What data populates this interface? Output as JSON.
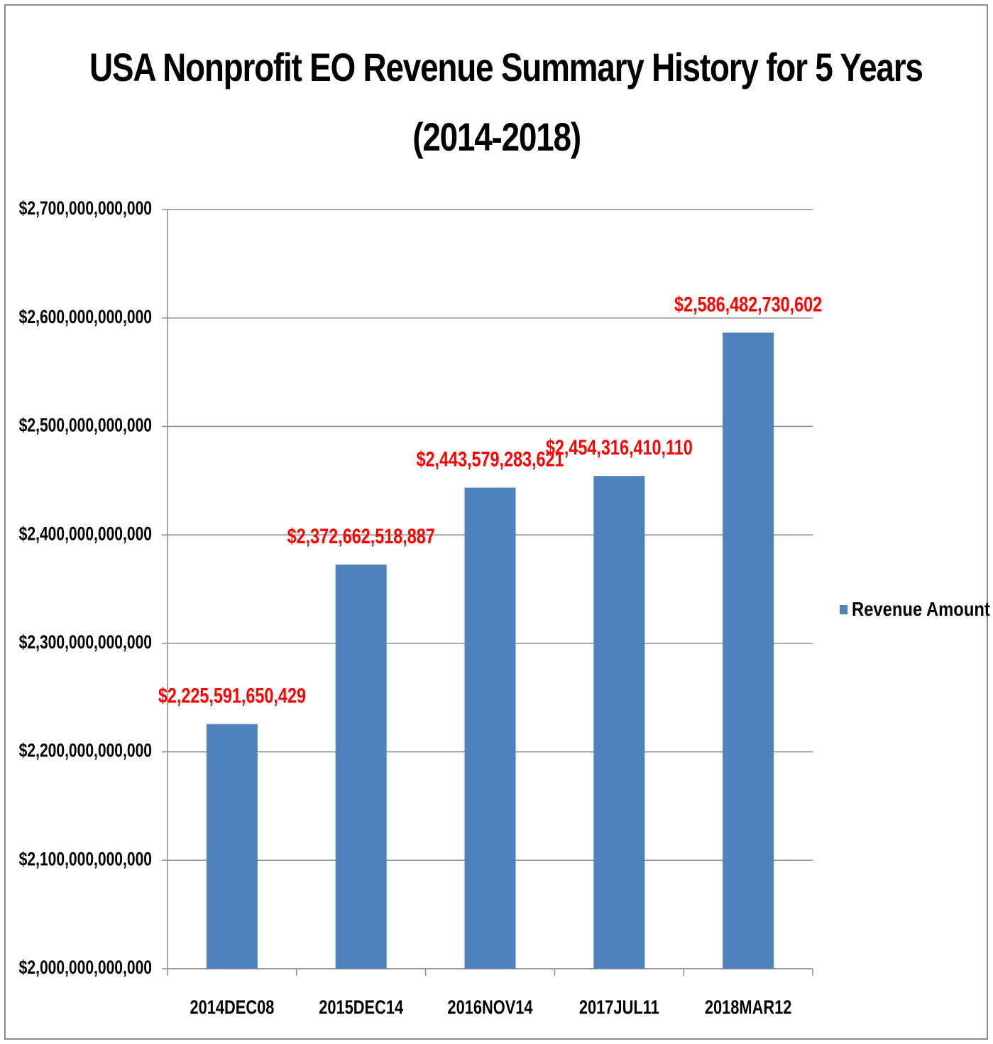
{
  "chart_data": {
    "type": "bar",
    "title_lines": [
      "USA Nonprofit EO Revenue Summary History for 5 Years",
      "(2014-2018)"
    ],
    "categories": [
      "2014DEC08",
      "2015DEC14",
      "2016NOV14",
      "2017JUL11",
      "2018MAR12"
    ],
    "series": [
      {
        "name": "Revenue Amount",
        "values": [
          2225591650429,
          2372662518887,
          2443579283621,
          2454316410110,
          2586482730602
        ],
        "data_labels": [
          "$2,225,591,650,429",
          "$2,372,662,518,887",
          "$2,443,579,283,621",
          "$2,454,316,410,110",
          "$2,586,482,730,602"
        ]
      }
    ],
    "ylim": [
      2000000000000,
      2700000000000
    ],
    "yticks": [
      2000000000000,
      2100000000000,
      2200000000000,
      2300000000000,
      2400000000000,
      2500000000000,
      2600000000000,
      2700000000000
    ],
    "ytick_labels": [
      "$2,000,000,000,000",
      "$2,100,000,000,000",
      "$2,200,000,000,000",
      "$2,300,000,000,000",
      "$2,400,000,000,000",
      "$2,500,000,000,000",
      "$2,600,000,000,000",
      "$2,700,000,000,000"
    ],
    "xlabel": "",
    "ylabel": "",
    "grid": true,
    "legend_position": "right",
    "colors": {
      "bar": "#4f81bd",
      "data_label": "#ff0000",
      "grid": "#8c8c8c",
      "axis": "#8c8c8c",
      "text": "#000000"
    }
  }
}
